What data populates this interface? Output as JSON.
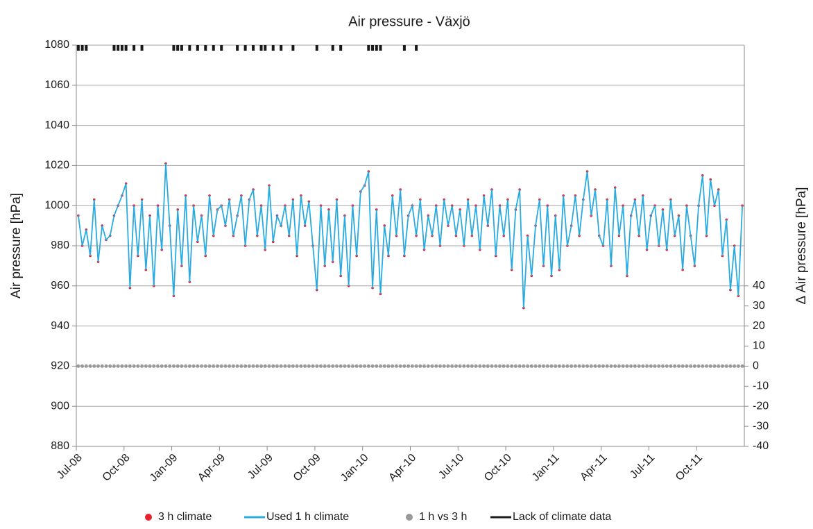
{
  "chart_data": {
    "type": "line",
    "title": "Air pressure - Växjö",
    "y_label": "Air pressure [hPa]",
    "y2_label": "Δ Air pressure [hPa]",
    "xticks": [
      "Jul-08",
      "Oct-08",
      "Jan-09",
      "Apr-09",
      "Jul-09",
      "Oct-09",
      "Jan-10",
      "Apr-10",
      "Jul-10",
      "Oct-10",
      "Jan-11",
      "Apr-11",
      "Jul-11",
      "Oct-11"
    ],
    "ylim": [
      880,
      1080
    ],
    "yticks": [
      880,
      900,
      920,
      940,
      960,
      980,
      1000,
      1020,
      1040,
      1060,
      1080
    ],
    "y2lim": [
      -40,
      160
    ],
    "y2ticks": [
      -40,
      -30,
      -20,
      -10,
      0,
      10,
      20,
      30,
      40
    ],
    "grid": true,
    "legend": "bottom",
    "series": [
      {
        "name": "3 h climate",
        "color": "#e8202a",
        "marker": "dot",
        "values": [
          995,
          980,
          988,
          975,
          1003,
          972,
          990,
          983,
          985,
          995,
          1000,
          1005,
          1011,
          959,
          1000,
          975,
          1003,
          968,
          995,
          960,
          1000,
          978,
          1021,
          990,
          955,
          998,
          970,
          1005,
          962,
          1000,
          982,
          995,
          975,
          1005,
          985,
          998,
          1000,
          990,
          1003,
          985,
          995,
          1005,
          980,
          1003,
          1008,
          985,
          1000,
          978,
          1010,
          982,
          995,
          990,
          1000,
          985,
          1003,
          975,
          1005,
          990,
          1002,
          980,
          958,
          1000,
          970,
          998,
          972,
          1003,
          965,
          995,
          960,
          1000,
          975,
          1007,
          1010,
          1017,
          959,
          998,
          956,
          990,
          975,
          1005,
          985,
          1008,
          975,
          995,
          1000,
          985,
          1003,
          978,
          995,
          985,
          1000,
          980,
          1003,
          990,
          1000,
          985,
          998,
          980,
          1003,
          985,
          1000,
          978,
          1005,
          990,
          1008,
          975,
          1000,
          985,
          1003,
          968,
          998,
          1008,
          949,
          985,
          965,
          990,
          1003,
          970,
          1000,
          965,
          995,
          968,
          1005,
          980,
          990,
          1005,
          985,
          1003,
          1017,
          995,
          1008,
          985,
          980,
          1003,
          970,
          1009,
          985,
          1000,
          965,
          995,
          1003,
          985,
          1005,
          978,
          995,
          1000,
          980,
          998,
          978,
          1003,
          985,
          995,
          968,
          1000,
          985,
          970,
          1000,
          1015,
          985,
          1013,
          1000,
          1008,
          975,
          993,
          958,
          980,
          955,
          1000
        ]
      },
      {
        "name": "Used 1 h climate",
        "color": "#29aae1",
        "marker": "line",
        "values": [
          995,
          980,
          988,
          975,
          1003,
          972,
          990,
          983,
          985,
          995,
          1000,
          1005,
          1011,
          959,
          1000,
          975,
          1003,
          968,
          995,
          960,
          1000,
          978,
          1021,
          990,
          955,
          998,
          970,
          1005,
          962,
          1000,
          982,
          995,
          975,
          1005,
          985,
          998,
          1000,
          990,
          1003,
          985,
          995,
          1005,
          980,
          1003,
          1008,
          985,
          1000,
          978,
          1010,
          982,
          995,
          990,
          1000,
          985,
          1003,
          975,
          1005,
          990,
          1002,
          980,
          958,
          1000,
          970,
          998,
          972,
          1003,
          965,
          995,
          960,
          1000,
          975,
          1007,
          1010,
          1017,
          959,
          998,
          956,
          990,
          975,
          1005,
          985,
          1008,
          975,
          995,
          1000,
          985,
          1003,
          978,
          995,
          985,
          1000,
          980,
          1003,
          990,
          1000,
          985,
          998,
          980,
          1003,
          985,
          1000,
          978,
          1005,
          990,
          1008,
          975,
          1000,
          985,
          1003,
          968,
          998,
          1008,
          949,
          985,
          965,
          990,
          1003,
          970,
          1000,
          965,
          995,
          968,
          1005,
          980,
          990,
          1005,
          985,
          1003,
          1017,
          995,
          1008,
          985,
          980,
          1003,
          970,
          1009,
          985,
          1000,
          965,
          995,
          1003,
          985,
          1005,
          978,
          995,
          1000,
          980,
          998,
          978,
          1003,
          985,
          995,
          968,
          1000,
          985,
          970,
          1000,
          1015,
          985,
          1013,
          1000,
          1008,
          975,
          993,
          958,
          980,
          955,
          1000
        ]
      },
      {
        "name": "1 h vs 3 h",
        "color": "#999999",
        "marker": "dot",
        "axis": "y2",
        "values": [
          0,
          0,
          0,
          0,
          0,
          0,
          0,
          0,
          0,
          0,
          0,
          0,
          0,
          0,
          0,
          0,
          0,
          0,
          0,
          0,
          0,
          0,
          0,
          0,
          0,
          0,
          0,
          0,
          0,
          0,
          0,
          0,
          0,
          0,
          0,
          0,
          0,
          0,
          0,
          0,
          0,
          0,
          0,
          0,
          0,
          0,
          0,
          0,
          0,
          0,
          0,
          0,
          0,
          0,
          0,
          0,
          0,
          0,
          0,
          0,
          0,
          0,
          0,
          0,
          0,
          0,
          0,
          0,
          0,
          0,
          0,
          0,
          0,
          0,
          0,
          0,
          0,
          0,
          0,
          0,
          0,
          0,
          0,
          0,
          0,
          0,
          0,
          0,
          0,
          0,
          0,
          0,
          0,
          0,
          0,
          0,
          0,
          0,
          0,
          0,
          0,
          0,
          0,
          0,
          0,
          0,
          0,
          0,
          0,
          0,
          0,
          0,
          0,
          0,
          0,
          0,
          0,
          0,
          0,
          0,
          0,
          0,
          0,
          0,
          0,
          0,
          0,
          0,
          0,
          0,
          0,
          0,
          0,
          0,
          0,
          0,
          0,
          0,
          0,
          0,
          0,
          0,
          0,
          0,
          0,
          0,
          0,
          0,
          0,
          0,
          0,
          0,
          0,
          0,
          0,
          0,
          0,
          0,
          0,
          0,
          0,
          0,
          0,
          0,
          0,
          0,
          0,
          0
        ]
      },
      {
        "name": "Lack of climate data",
        "color": "#1a1a1a",
        "marker": "bar",
        "values": [
          1080,
          1080,
          1080,
          null,
          null,
          null,
          null,
          null,
          null,
          1080,
          1080,
          1080,
          1080,
          null,
          1080,
          null,
          1080,
          null,
          null,
          null,
          null,
          null,
          null,
          null,
          1080,
          1080,
          1080,
          null,
          1080,
          null,
          1080,
          null,
          1080,
          null,
          1080,
          null,
          1080,
          null,
          null,
          null,
          1080,
          null,
          1080,
          null,
          1080,
          null,
          1080,
          1080,
          null,
          1080,
          null,
          1080,
          null,
          null,
          1080,
          null,
          null,
          null,
          null,
          null,
          1080,
          null,
          null,
          null,
          1080,
          null,
          1080,
          null,
          null,
          null,
          null,
          null,
          null,
          1080,
          1080,
          1080,
          1080,
          null,
          null,
          null,
          null,
          null,
          1080,
          null,
          null,
          1080,
          null,
          null,
          null,
          null,
          null,
          null,
          null,
          null,
          null,
          null,
          null,
          null,
          null,
          null,
          null,
          null,
          null,
          null,
          null,
          null,
          null,
          null,
          null,
          null,
          null,
          null,
          null,
          null,
          null,
          null,
          null,
          null,
          null,
          null,
          null,
          null,
          null,
          null,
          null,
          null,
          null,
          null,
          null,
          null,
          null,
          null,
          null,
          null,
          null,
          null,
          null,
          null,
          null,
          null,
          null,
          null,
          null,
          null,
          null,
          null,
          null,
          null,
          null,
          null,
          null,
          null,
          null,
          null,
          null,
          null,
          null,
          null,
          null,
          null,
          null,
          null,
          null,
          null,
          null,
          null
        ]
      }
    ]
  }
}
